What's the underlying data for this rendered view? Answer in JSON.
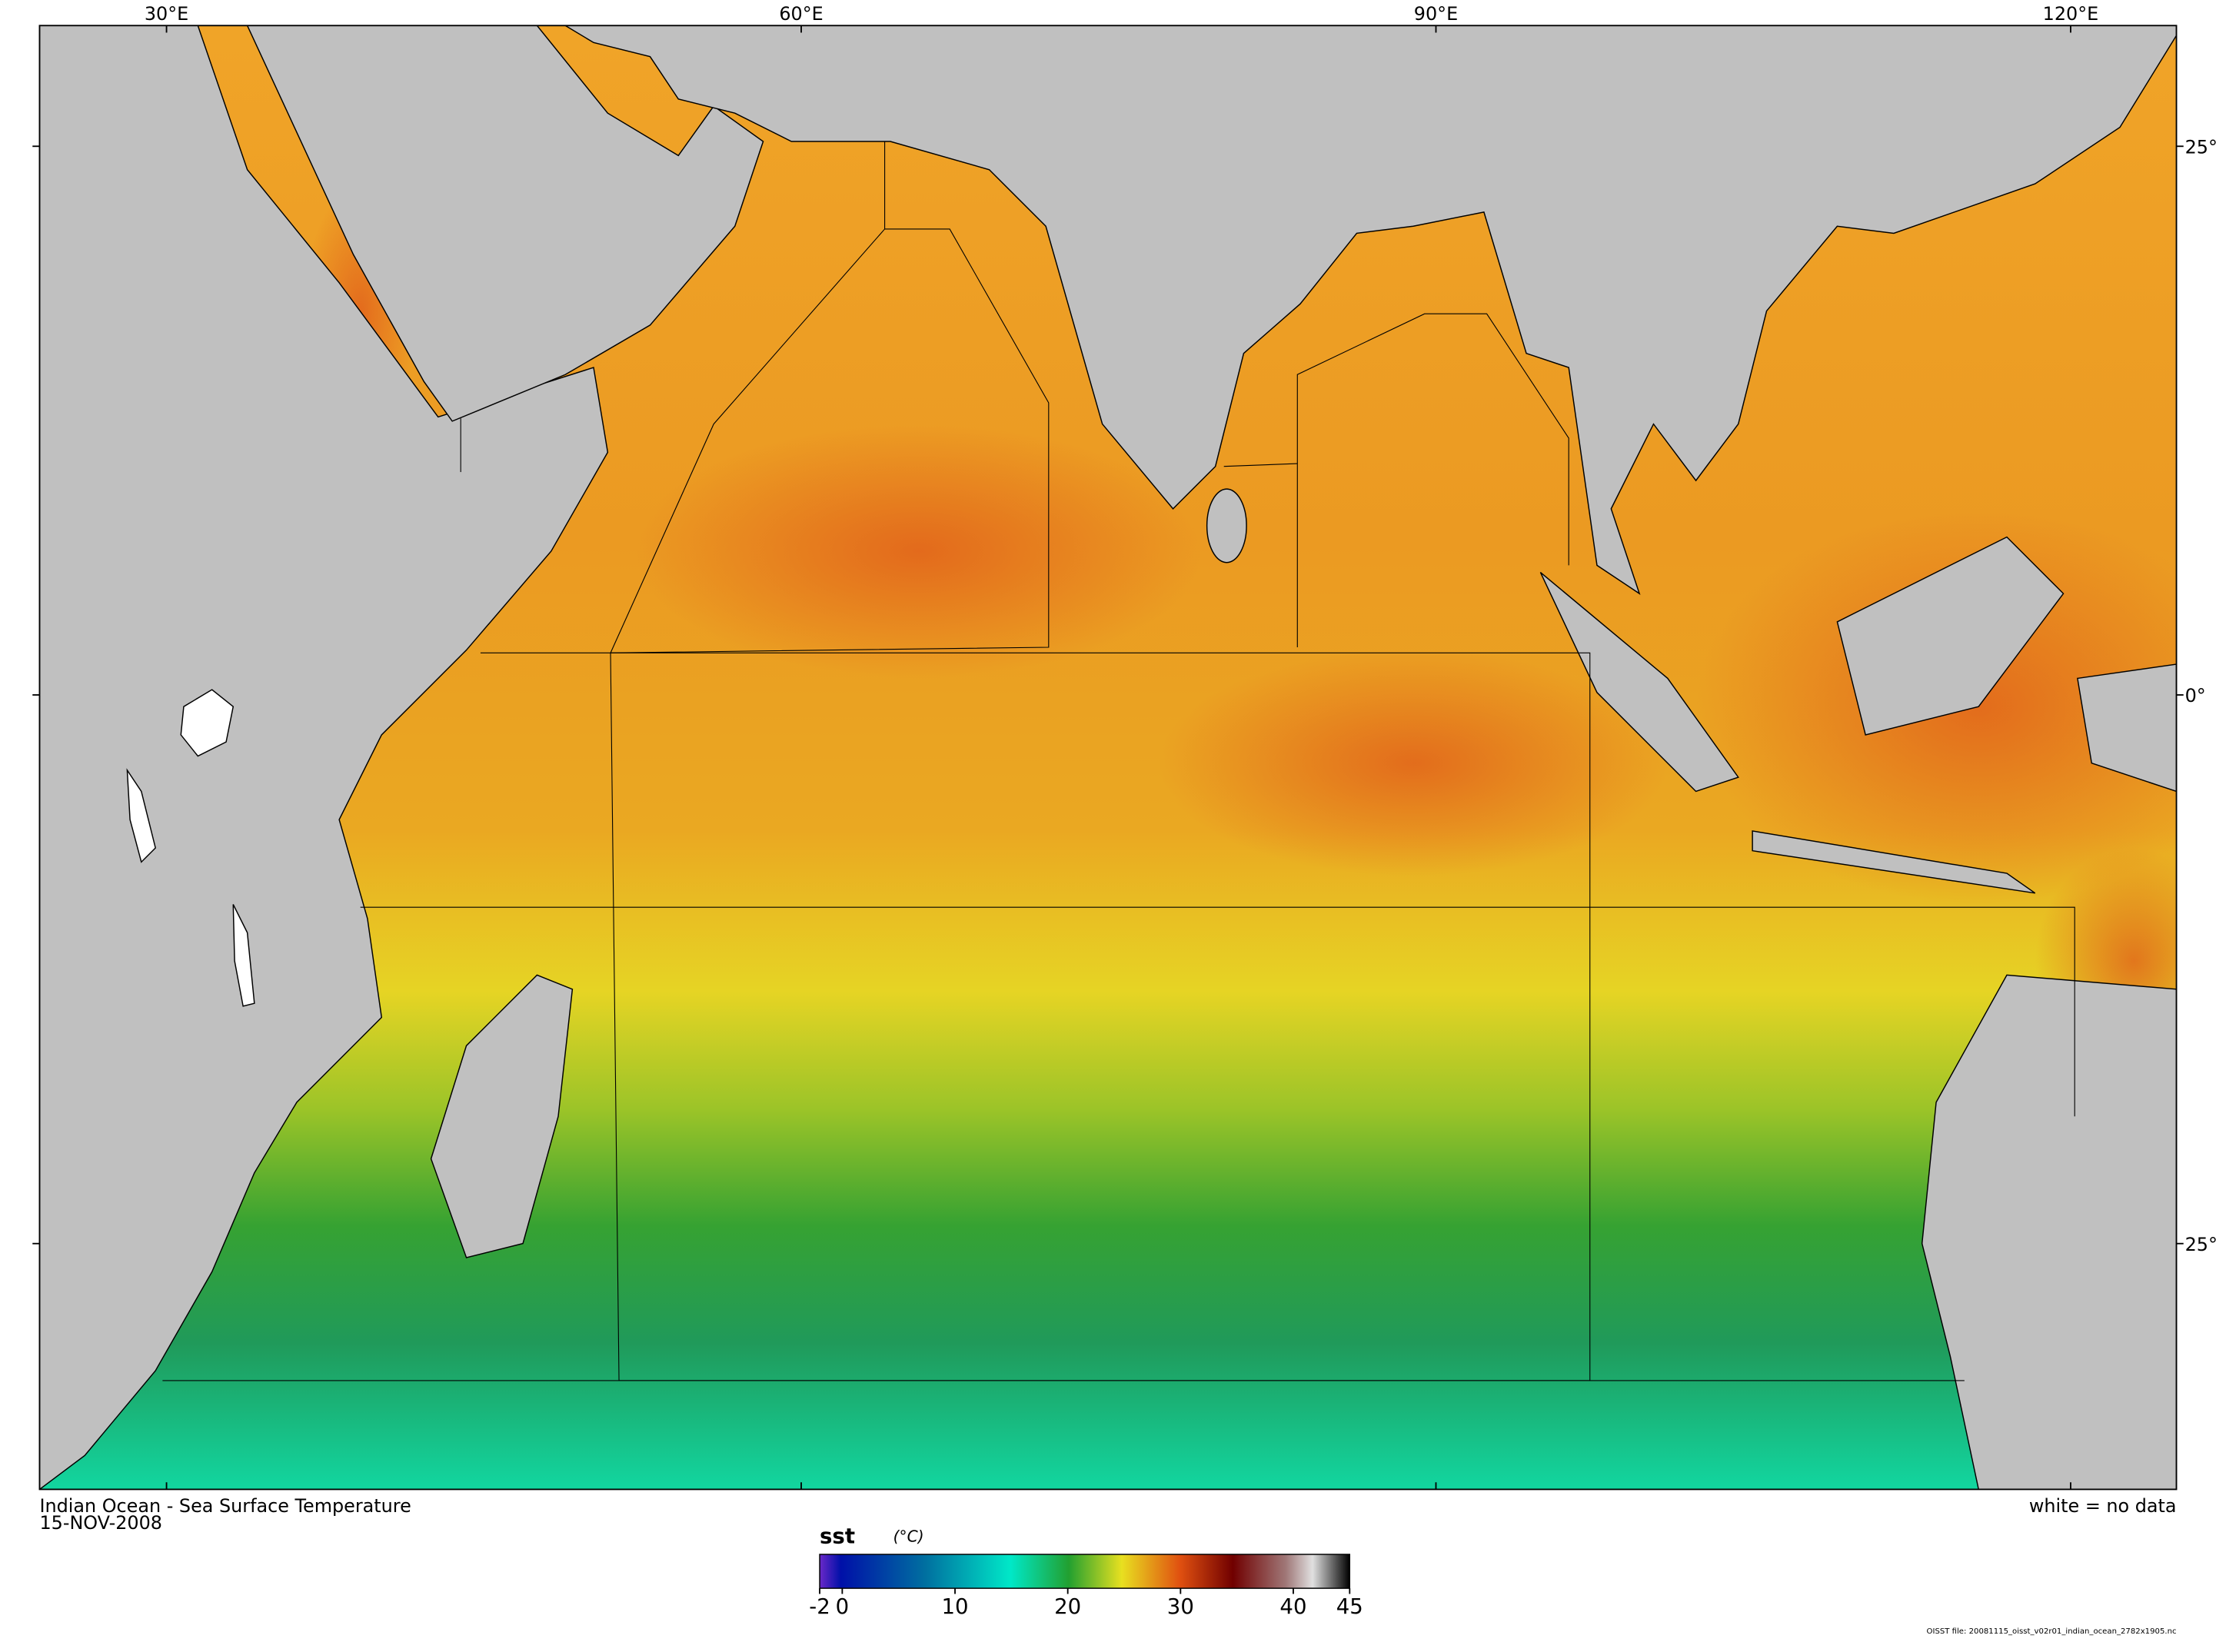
{
  "map": {
    "title": "Indian Ocean - Sea Surface Temperature",
    "date": "15-NOV-2008",
    "note": "white = no data",
    "source": "OISST file: 20081115_oisst_v02r01_indian_ocean_2782x1905.nc",
    "lonlim": [
      24,
      125
    ],
    "latlim": [
      -36.2,
      30.5
    ],
    "lon_ticks": [
      {
        "value": 30,
        "label": "30°E"
      },
      {
        "value": 60,
        "label": "60°E"
      },
      {
        "value": 90,
        "label": "90°E"
      },
      {
        "value": 120,
        "label": "120°E"
      }
    ],
    "lat_ticks": [
      {
        "value": 25,
        "label": "25°"
      },
      {
        "value": 0,
        "label": "0°"
      },
      {
        "value": -25,
        "label": "25°"
      }
    ],
    "colorbar": {
      "variable": "sst",
      "unit": "(°C)",
      "range": [
        -2,
        45
      ],
      "ticks": [
        -2,
        0,
        10,
        20,
        30,
        40,
        45
      ]
    }
  }
}
